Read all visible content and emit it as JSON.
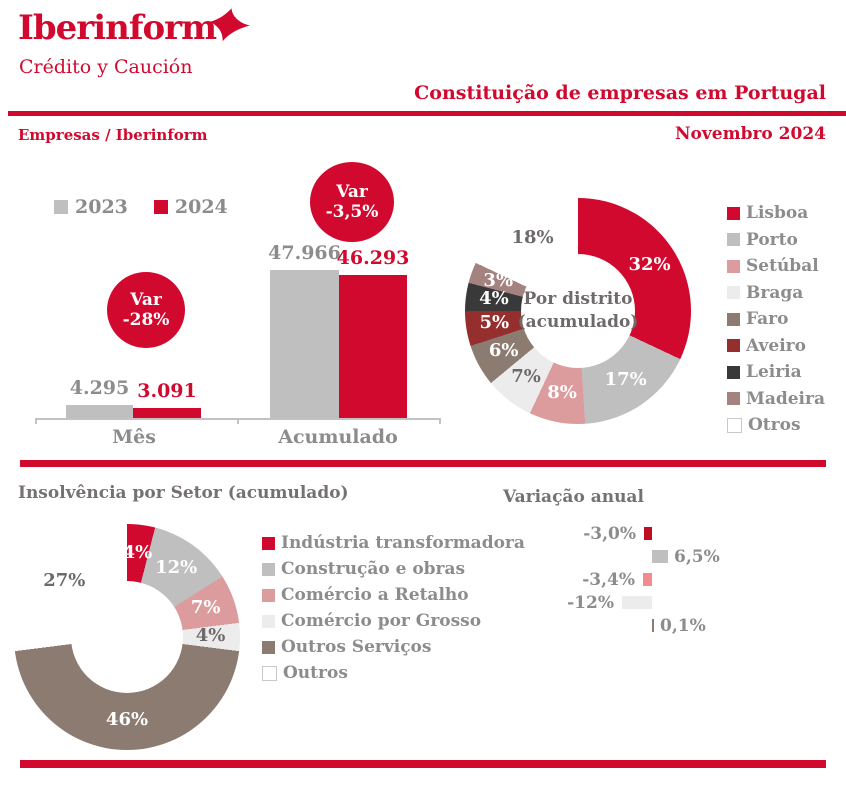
{
  "brand": {
    "logo_text": "Iberinform",
    "logo_subtitle": "Crédito y Caución",
    "accent_color": "#D2092F"
  },
  "header": {
    "title": "Constituição de empresas em Portugal",
    "left_label": "Empresas / Iberinform",
    "date_label": "Novembro 2024"
  },
  "monthly_chart": {
    "legend": [
      {
        "label": "2023",
        "color": "#BFBFBF"
      },
      {
        "label": "2024",
        "color": "#D2092F"
      }
    ],
    "max": 47966,
    "groups": [
      {
        "label": "Mês",
        "values": [
          {
            "label": "4.295",
            "value": 4295
          },
          {
            "label": "3.091",
            "value": 3091
          }
        ],
        "var_title": "Var",
        "var_value": "-28%"
      },
      {
        "label": "Acumulado",
        "values": [
          {
            "label": "47.966",
            "value": 47966
          },
          {
            "label": "46.293",
            "value": 46293
          }
        ],
        "var_title": "Var",
        "var_value": "-3,5%"
      }
    ]
  },
  "district_donut": {
    "center_line1": "Por distrito",
    "center_line2": "(acumulado)",
    "segments": [
      {
        "label": "Lisboa",
        "pct": 32,
        "color": "#D2092F",
        "label_color": "#FFFFFF"
      },
      {
        "label": "Porto",
        "pct": 17,
        "color": "#BFBFBF",
        "label_color": "#FFFFFF"
      },
      {
        "label": "Setúbal",
        "pct": 8,
        "color": "#DC9C9E",
        "label_color": "#FFFFFF"
      },
      {
        "label": "Braga",
        "pct": 7,
        "color": "#EDECEC",
        "label_color": "#6E6A6A"
      },
      {
        "label": "Faro",
        "pct": 6,
        "color": "#8C7B71",
        "label_color": "#FFFFFF"
      },
      {
        "label": "Aveiro",
        "pct": 5,
        "color": "#952F2E",
        "label_color": "#FFFFFF"
      },
      {
        "label": "Leiria",
        "pct": 4,
        "color": "#3A3939",
        "label_color": "#FFFFFF"
      },
      {
        "label": "Madeira",
        "pct": 3,
        "color": "#A38280",
        "label_color": "#FFFFFF"
      },
      {
        "label": "Otros",
        "pct": 18,
        "color": "#FFFFFF",
        "label_color": "#6E6A6A"
      }
    ]
  },
  "sector_section": {
    "title": "Insolvência por Setor (acumulado)",
    "donut_segments": [
      {
        "label": "Indústria transformadora",
        "pct": 4,
        "color": "#D2092F",
        "label_color": "#FFFFFF"
      },
      {
        "label": "Construção e obras",
        "pct": 12,
        "color": "#BFBFBF",
        "label_color": "#FFFFFF"
      },
      {
        "label": "Comércio a Retalho",
        "pct": 7,
        "color": "#DC9C9E",
        "label_color": "#FFFFFF"
      },
      {
        "label": "Comércio por Grosso",
        "pct": 4,
        "color": "#EDECEC",
        "label_color": "#6E6A6A"
      },
      {
        "label": "Outros Serviços",
        "pct": 46,
        "color": "#8C7B71",
        "label_color": "#FFFFFF"
      },
      {
        "label": "Outros",
        "pct": 27,
        "color": "#FFFFFF",
        "label_color": "#6E6A6A"
      }
    ]
  },
  "variation_chart": {
    "title": "Variação anual",
    "rows": [
      {
        "label": "-3,0%",
        "value": -3.0,
        "color": "#C00F22"
      },
      {
        "label": "6,5%",
        "value": 6.5,
        "color": "#BFBFBF"
      },
      {
        "label": "-3,4%",
        "value": -3.4,
        "color": "#F28B8D"
      },
      {
        "label": "-12%",
        "value": -12,
        "color": "#EDECEC"
      },
      {
        "label": "0,1%",
        "value": 0.1,
        "color": "#8C7B71"
      }
    ]
  },
  "chart_data": [
    {
      "type": "bar",
      "title": "Constituição de empresas em Portugal — Mês / Acumulado",
      "categories": [
        "Mês",
        "Acumulado"
      ],
      "series": [
        {
          "name": "2023",
          "values": [
            4295,
            47966
          ]
        },
        {
          "name": "2024",
          "values": [
            3091,
            46293
          ]
        }
      ],
      "annotations": [
        "Var -28%",
        "Var -3,5%"
      ],
      "ylim": [
        0,
        50000
      ],
      "legend_position": "top-left",
      "grid": false
    },
    {
      "type": "pie",
      "title": "Por distrito (acumulado)",
      "labels": [
        "Lisboa",
        "Porto",
        "Setúbal",
        "Braga",
        "Faro",
        "Aveiro",
        "Leiria",
        "Madeira",
        "Otros"
      ],
      "values": [
        32,
        17,
        8,
        7,
        6,
        5,
        4,
        3,
        18
      ],
      "legend_position": "right"
    },
    {
      "type": "pie",
      "title": "Insolvência por Setor (acumulado)",
      "labels": [
        "Indústria transformadora",
        "Construção e obras",
        "Comércio a Retalho",
        "Comércio por Grosso",
        "Outros Serviços",
        "Outros"
      ],
      "values": [
        4,
        12,
        7,
        4,
        46,
        27
      ],
      "legend_position": "right"
    },
    {
      "type": "bar",
      "title": "Variação anual",
      "orientation": "horizontal",
      "categories": [
        "Indústria transformadora",
        "Construção e obras",
        "Comércio a Retalho",
        "Comércio por Grosso",
        "Outros Serviços"
      ],
      "values": [
        -3.0,
        6.5,
        -3.4,
        -12,
        0.1
      ],
      "grid": false
    }
  ]
}
